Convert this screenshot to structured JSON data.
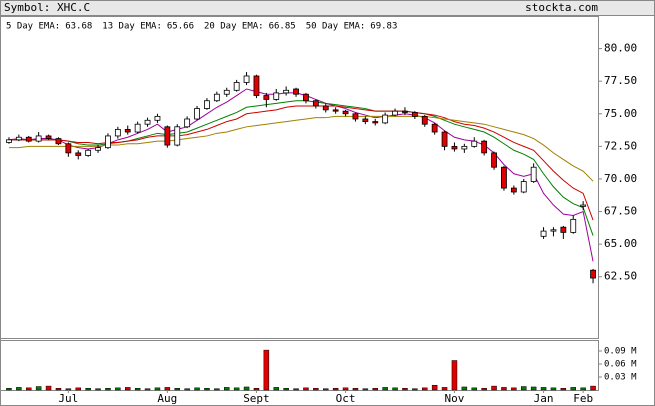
{
  "header": {
    "symbol": "Symbol: XHC.C",
    "site": "stockta.com"
  },
  "chart_data": [
    {
      "type": "candlestick",
      "up_color": "#ffffff",
      "down_color": "#e00000",
      "ylim": [
        57.8,
        82.5
      ],
      "yticks": [
        {
          "value": 62.5,
          "label": "62.50"
        },
        {
          "value": 65,
          "label": "65.00"
        },
        {
          "value": 67.5,
          "label": "67.50"
        },
        {
          "value": 70,
          "label": "70.00"
        },
        {
          "value": 72.5,
          "label": "72.50"
        },
        {
          "value": 75,
          "label": "75.00"
        },
        {
          "value": 77.5,
          "label": "77.50"
        },
        {
          "value": 80,
          "label": "80.00"
        }
      ],
      "ohlc": [
        [
          72.8,
          73.2,
          72.7,
          73.0
        ],
        [
          73.0,
          73.4,
          72.9,
          73.2
        ],
        [
          73.2,
          73.3,
          72.8,
          72.9
        ],
        [
          72.9,
          73.6,
          72.8,
          73.3
        ],
        [
          73.3,
          73.4,
          73.0,
          73.1
        ],
        [
          73.1,
          73.2,
          72.6,
          72.7
        ],
        [
          72.7,
          72.8,
          71.7,
          72.0
        ],
        [
          72.0,
          72.2,
          71.5,
          71.8
        ],
        [
          71.8,
          72.3,
          71.7,
          72.2
        ],
        [
          72.2,
          72.6,
          72.0,
          72.4
        ],
        [
          72.4,
          73.5,
          72.3,
          73.3
        ],
        [
          73.3,
          74.0,
          73.1,
          73.8
        ],
        [
          73.8,
          74.1,
          73.4,
          73.6
        ],
        [
          73.6,
          74.4,
          73.5,
          74.2
        ],
        [
          74.2,
          74.7,
          74.0,
          74.5
        ],
        [
          74.5,
          75.0,
          74.3,
          74.8
        ],
        [
          74.0,
          74.1,
          72.4,
          72.6
        ],
        [
          72.6,
          74.2,
          72.5,
          74.0
        ],
        [
          74.0,
          74.8,
          73.9,
          74.6
        ],
        [
          74.6,
          75.6,
          74.5,
          75.4
        ],
        [
          75.4,
          76.2,
          75.3,
          76.0
        ],
        [
          76.0,
          76.7,
          75.9,
          76.5
        ],
        [
          76.5,
          77.0,
          76.3,
          76.8
        ],
        [
          76.8,
          77.6,
          76.7,
          77.4
        ],
        [
          77.4,
          78.2,
          77.2,
          77.9
        ],
        [
          77.9,
          78.0,
          76.2,
          76.4
        ],
        [
          76.4,
          76.6,
          75.5,
          76.1
        ],
        [
          76.1,
          76.9,
          76.0,
          76.6
        ],
        [
          76.6,
          77.1,
          76.4,
          76.8
        ],
        [
          76.9,
          77.0,
          76.3,
          76.5
        ],
        [
          76.5,
          76.6,
          75.8,
          76.0
        ],
        [
          76.0,
          76.1,
          75.4,
          75.6
        ],
        [
          75.6,
          75.8,
          75.1,
          75.3
        ],
        [
          75.3,
          75.5,
          75.0,
          75.2
        ],
        [
          75.2,
          75.3,
          74.8,
          75.0
        ],
        [
          75.0,
          75.1,
          74.4,
          74.6
        ],
        [
          74.6,
          74.8,
          74.2,
          74.4
        ],
        [
          74.4,
          74.6,
          74.1,
          74.3
        ],
        [
          74.3,
          75.1,
          74.2,
          74.9
        ],
        [
          74.9,
          75.4,
          74.8,
          75.2
        ],
        [
          75.2,
          75.5,
          74.9,
          75.1
        ],
        [
          75.1,
          75.2,
          74.6,
          74.8
        ],
        [
          74.8,
          74.9,
          74.0,
          74.2
        ],
        [
          74.2,
          74.3,
          73.4,
          73.6
        ],
        [
          73.6,
          73.7,
          72.2,
          72.5
        ],
        [
          72.5,
          72.8,
          72.1,
          72.3
        ],
        [
          72.3,
          72.7,
          72.0,
          72.5
        ],
        [
          72.5,
          73.2,
          72.4,
          72.9
        ],
        [
          72.9,
          73.0,
          71.8,
          72.0
        ],
        [
          72.0,
          72.1,
          70.7,
          70.9
        ],
        [
          70.9,
          71.0,
          69.1,
          69.3
        ],
        [
          69.3,
          69.5,
          68.8,
          69.0
        ],
        [
          69.0,
          70.0,
          68.9,
          69.8
        ],
        [
          69.8,
          71.2,
          69.7,
          70.9
        ],
        [
          65.6,
          66.3,
          65.4,
          66.0
        ],
        [
          66.0,
          66.3,
          65.6,
          66.1
        ],
        [
          66.3,
          66.4,
          65.4,
          65.9
        ],
        [
          65.9,
          67.2,
          65.8,
          66.9
        ],
        [
          67.9,
          68.3,
          67.6,
          68.0
        ],
        [
          63.0,
          63.1,
          62.0,
          62.4
        ]
      ],
      "series": [
        {
          "name": "5 Day EMA:",
          "legend_value": 63.68,
          "color": "#a000a0",
          "values": [
            73.0,
            73.1,
            73.0,
            73.1,
            73.1,
            73.0,
            72.6,
            72.4,
            72.3,
            72.4,
            72.7,
            73.0,
            73.2,
            73.5,
            73.8,
            74.2,
            73.6,
            73.8,
            74.0,
            74.5,
            75.0,
            75.5,
            75.9,
            76.4,
            76.9,
            76.7,
            76.5,
            76.5,
            76.6,
            76.6,
            76.4,
            76.1,
            75.8,
            75.6,
            75.4,
            75.1,
            74.9,
            74.7,
            74.8,
            74.9,
            75.0,
            74.9,
            74.7,
            74.3,
            73.7,
            73.2,
            73.0,
            72.9,
            72.6,
            72.0,
            71.1,
            70.4,
            70.2,
            70.4,
            68.9,
            68.0,
            67.3,
            67.2,
            67.5,
            63.68
          ]
        },
        {
          "name": "13 Day EMA:",
          "legend_value": 65.66,
          "color": "#008000",
          "values": [
            73.0,
            73.0,
            73.0,
            73.0,
            73.0,
            73.0,
            72.9,
            72.7,
            72.6,
            72.6,
            72.7,
            72.8,
            72.9,
            73.1,
            73.3,
            73.5,
            73.4,
            73.5,
            73.6,
            73.9,
            74.2,
            74.5,
            74.8,
            75.1,
            75.5,
            75.6,
            75.7,
            75.8,
            75.9,
            76.0,
            76.0,
            75.9,
            75.8,
            75.7,
            75.6,
            75.5,
            75.4,
            75.2,
            75.2,
            75.2,
            75.2,
            75.1,
            75.0,
            74.8,
            74.5,
            74.2,
            74.0,
            73.8,
            73.6,
            73.2,
            72.7,
            72.2,
            71.9,
            71.5,
            70.4,
            69.4,
            68.6,
            68.1,
            67.8,
            65.66
          ]
        },
        {
          "name": "20 Day EMA:",
          "legend_value": 66.85,
          "color": "#d00000",
          "values": [
            73.0,
            73.0,
            73.0,
            73.0,
            73.0,
            73.0,
            72.9,
            72.8,
            72.8,
            72.7,
            72.8,
            72.8,
            72.9,
            73.0,
            73.2,
            73.3,
            73.3,
            73.3,
            73.4,
            73.6,
            73.8,
            74.1,
            74.4,
            74.6,
            75.0,
            75.1,
            75.2,
            75.3,
            75.5,
            75.6,
            75.6,
            75.6,
            75.6,
            75.6,
            75.5,
            75.4,
            75.3,
            75.2,
            75.2,
            75.2,
            75.2,
            75.1,
            75.0,
            74.9,
            74.7,
            74.4,
            74.2,
            74.1,
            73.9,
            73.6,
            73.2,
            72.8,
            72.5,
            72.2,
            71.4,
            70.6,
            69.9,
            69.3,
            68.9,
            66.85
          ]
        },
        {
          "name": "50 Day EMA:",
          "legend_value": 69.83,
          "color": "#a08000",
          "values": [
            72.4,
            72.4,
            72.5,
            72.5,
            72.5,
            72.5,
            72.5,
            72.5,
            72.5,
            72.5,
            72.6,
            72.6,
            72.7,
            72.7,
            72.8,
            72.9,
            72.9,
            73.0,
            73.1,
            73.2,
            73.3,
            73.5,
            73.6,
            73.8,
            74.0,
            74.1,
            74.2,
            74.3,
            74.4,
            74.5,
            74.6,
            74.7,
            74.7,
            74.8,
            74.8,
            74.8,
            74.8,
            74.8,
            74.8,
            74.8,
            74.8,
            74.8,
            74.8,
            74.7,
            74.6,
            74.5,
            74.4,
            74.3,
            74.2,
            74.0,
            73.8,
            73.6,
            73.4,
            73.1,
            72.6,
            72.0,
            71.5,
            71.0,
            70.6,
            69.83
          ]
        }
      ]
    },
    {
      "type": "bar",
      "up_color": "#008000",
      "down_color": "#e00000",
      "ylim": [
        0,
        0.113
      ],
      "yticks": [
        {
          "value": 0.03,
          "label": "0.03 M"
        },
        {
          "value": 0.06,
          "label": "0.06 M"
        },
        {
          "value": 0.09,
          "label": "0.09 M"
        }
      ],
      "categories": [
        null,
        null,
        null,
        null,
        null,
        null,
        "Jul",
        null,
        null,
        null,
        null,
        null,
        null,
        null,
        null,
        null,
        "Aug",
        null,
        null,
        null,
        null,
        null,
        null,
        null,
        null,
        "Sept",
        null,
        null,
        null,
        null,
        null,
        null,
        null,
        null,
        "Oct",
        null,
        null,
        null,
        null,
        null,
        null,
        null,
        null,
        null,
        null,
        "Nov",
        null,
        null,
        null,
        null,
        null,
        null,
        null,
        null,
        "Jan",
        null,
        null,
        null,
        "Feb",
        null
      ],
      "values": [
        0.004,
        0.006,
        0.005,
        0.008,
        0.009,
        0.004,
        0.003,
        0.005,
        0.004,
        0.003,
        0.004,
        0.005,
        0.006,
        0.004,
        0.003,
        0.005,
        0.006,
        0.004,
        0.003,
        0.005,
        0.004,
        0.003,
        0.006,
        0.005,
        0.007,
        0.004,
        0.092,
        0.006,
        0.004,
        0.003,
        0.005,
        0.004,
        0.003,
        0.004,
        0.005,
        0.004,
        0.003,
        0.004,
        0.006,
        0.005,
        0.004,
        0.003,
        0.005,
        0.011,
        0.006,
        0.068,
        0.007,
        0.005,
        0.004,
        0.009,
        0.006,
        0.005,
        0.008,
        0.007,
        0.006,
        0.005,
        0.004,
        0.006,
        0.005,
        0.009
      ]
    }
  ]
}
